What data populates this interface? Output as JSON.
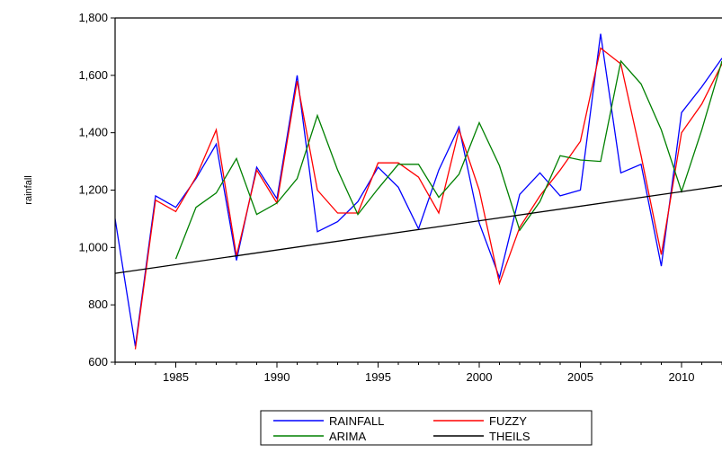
{
  "chart_data": {
    "type": "line",
    "title": "",
    "xlabel": "",
    "ylabel": "rainfall",
    "xlim": [
      1982,
      2012
    ],
    "ylim": [
      600,
      1800
    ],
    "x_ticks": [
      1985,
      1990,
      1995,
      2000,
      2005,
      2010
    ],
    "y_ticks": [
      600,
      800,
      1000,
      1200,
      1400,
      1600,
      1800
    ],
    "y_tick_labels": [
      "600",
      "800",
      "1,000",
      "1,200",
      "1,400",
      "1,600",
      "1,800"
    ],
    "grid": false,
    "legend_position": "bottom",
    "series": [
      {
        "name": "RAINFALL",
        "color": "#0000ff",
        "x": [
          1982,
          1983,
          1984,
          1985,
          1986,
          1987,
          1988,
          1989,
          1990,
          1991,
          1992,
          1993,
          1994,
          1995,
          1996,
          1997,
          1998,
          1999,
          2000,
          2001,
          2002,
          2003,
          2004,
          2005,
          2006,
          2007,
          2008,
          2009,
          2010,
          2011,
          2012
        ],
        "y": [
          1100,
          655,
          1180,
          1140,
          1240,
          1360,
          955,
          1280,
          1170,
          1600,
          1055,
          1090,
          1160,
          1280,
          1210,
          1065,
          1270,
          1420,
          1085,
          895,
          1185,
          1260,
          1180,
          1200,
          1745,
          1260,
          1290,
          935,
          1470,
          1560,
          1660
        ]
      },
      {
        "name": "FUZZY",
        "color": "#ff0000",
        "x": [
          1983,
          1984,
          1985,
          1986,
          1987,
          1988,
          1989,
          1990,
          1991,
          1992,
          1993,
          1994,
          1995,
          1996,
          1997,
          1998,
          1999,
          2000,
          2001,
          2002,
          2003,
          2004,
          2005,
          2006,
          2007,
          2008,
          2009,
          2010,
          2011,
          2012
        ],
        "y": [
          645,
          1165,
          1125,
          1245,
          1410,
          970,
          1270,
          1155,
          1580,
          1200,
          1120,
          1120,
          1295,
          1295,
          1245,
          1120,
          1410,
          1200,
          875,
          1070,
          1180,
          1270,
          1370,
          1695,
          1640,
          1320,
          975,
          1400,
          1500,
          1640
        ]
      },
      {
        "name": "ARIMA",
        "color": "#008000",
        "x": [
          1985,
          1986,
          1987,
          1988,
          1989,
          1990,
          1991,
          1992,
          1993,
          1994,
          1995,
          1996,
          1997,
          1998,
          1999,
          2000,
          2001,
          2002,
          2003,
          2004,
          2005,
          2006,
          2007,
          2008,
          2009,
          2010,
          2011,
          2012
        ],
        "y": [
          960,
          1140,
          1190,
          1310,
          1115,
          1155,
          1240,
          1460,
          1270,
          1115,
          1205,
          1290,
          1290,
          1175,
          1255,
          1435,
          1285,
          1060,
          1160,
          1320,
          1305,
          1300,
          1650,
          1570,
          1410,
          1195,
          1410,
          1650
        ]
      },
      {
        "name": "THEILS",
        "color": "#000000",
        "x": [
          1982,
          2012
        ],
        "y": [
          910,
          1215
        ]
      }
    ]
  }
}
